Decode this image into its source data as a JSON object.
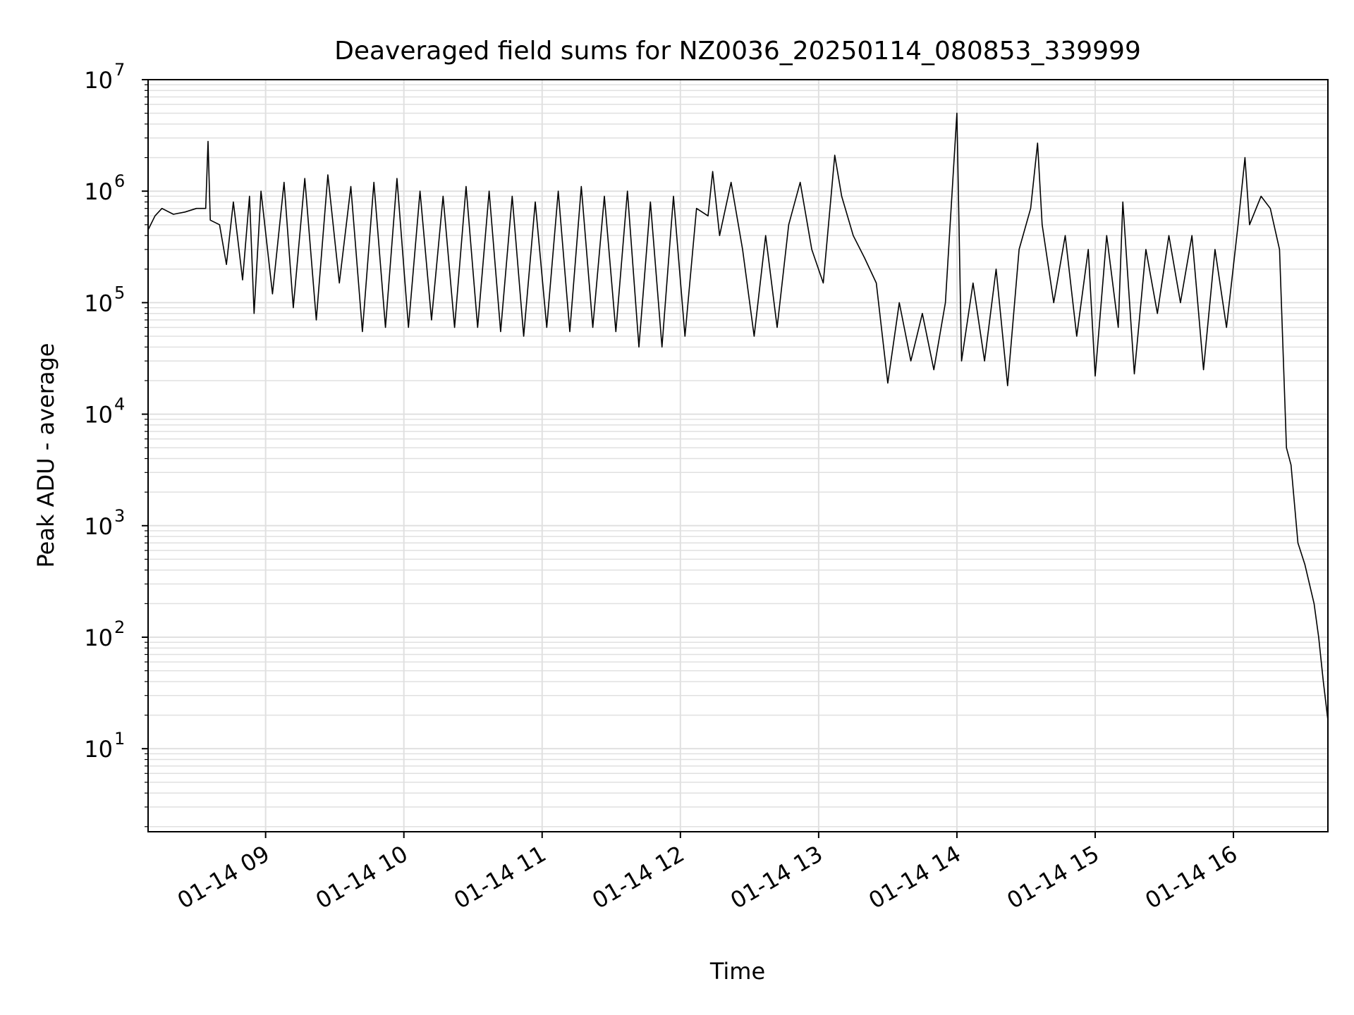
{
  "chart_data": {
    "type": "line",
    "title": "Deaveraged field sums for NZ0036_20250114_080853_339999",
    "xlabel": "Time",
    "ylabel": "Peak ADU - average",
    "yscale": "log",
    "grid": true,
    "grid_minor": true,
    "line_color": "#000000",
    "grid_color": "#e0e0e0",
    "xlim": [
      "2025-01-14 08:09",
      "2025-01-14 16:41"
    ],
    "ylim": [
      1.8,
      10000000
    ],
    "x_ticks": [
      {
        "value": "2025-01-14 09:00",
        "label": "01-14 09"
      },
      {
        "value": "2025-01-14 10:00",
        "label": "01-14 10"
      },
      {
        "value": "2025-01-14 11:00",
        "label": "01-14 11"
      },
      {
        "value": "2025-01-14 12:00",
        "label": "01-14 12"
      },
      {
        "value": "2025-01-14 13:00",
        "label": "01-14 13"
      },
      {
        "value": "2025-01-14 14:00",
        "label": "01-14 14"
      },
      {
        "value": "2025-01-14 15:00",
        "label": "01-14 15"
      },
      {
        "value": "2025-01-14 16:00",
        "label": "01-14 16"
      }
    ],
    "y_ticks": [
      {
        "value": 10,
        "base": "10",
        "exp": "1"
      },
      {
        "value": 100,
        "base": "10",
        "exp": "2"
      },
      {
        "value": 1000,
        "base": "10",
        "exp": "3"
      },
      {
        "value": 10000,
        "base": "10",
        "exp": "4"
      },
      {
        "value": 100000,
        "base": "10",
        "exp": "5"
      },
      {
        "value": 1000000,
        "base": "10",
        "exp": "6"
      },
      {
        "value": 10000000,
        "base": "10",
        "exp": "7"
      }
    ],
    "series": [
      {
        "points": [
          [
            "2025-01-14 08:09",
            450000
          ],
          [
            "2025-01-14 08:12",
            600000
          ],
          [
            "2025-01-14 08:15",
            700000
          ],
          [
            "2025-01-14 08:20",
            620000
          ],
          [
            "2025-01-14 08:25",
            650000
          ],
          [
            "2025-01-14 08:30",
            700000
          ],
          [
            "2025-01-14 08:34",
            700000
          ],
          [
            "2025-01-14 08:35",
            2800000
          ],
          [
            "2025-01-14 08:36",
            550000
          ],
          [
            "2025-01-14 08:40",
            500000
          ],
          [
            "2025-01-14 08:43",
            220000
          ],
          [
            "2025-01-14 08:46",
            800000
          ],
          [
            "2025-01-14 08:50",
            160000
          ],
          [
            "2025-01-14 08:53",
            900000
          ],
          [
            "2025-01-14 08:55",
            80000
          ],
          [
            "2025-01-14 08:58",
            1000000
          ],
          [
            "2025-01-14 09:03",
            120000
          ],
          [
            "2025-01-14 09:08",
            1200000
          ],
          [
            "2025-01-14 09:12",
            90000
          ],
          [
            "2025-01-14 09:17",
            1300000
          ],
          [
            "2025-01-14 09:22",
            70000
          ],
          [
            "2025-01-14 09:27",
            1400000
          ],
          [
            "2025-01-14 09:32",
            150000
          ],
          [
            "2025-01-14 09:37",
            1100000
          ],
          [
            "2025-01-14 09:42",
            55000
          ],
          [
            "2025-01-14 09:47",
            1200000
          ],
          [
            "2025-01-14 09:52",
            60000
          ],
          [
            "2025-01-14 09:57",
            1300000
          ],
          [
            "2025-01-14 10:02",
            60000
          ],
          [
            "2025-01-14 10:07",
            1000000
          ],
          [
            "2025-01-14 10:12",
            70000
          ],
          [
            "2025-01-14 10:17",
            900000
          ],
          [
            "2025-01-14 10:22",
            60000
          ],
          [
            "2025-01-14 10:27",
            1100000
          ],
          [
            "2025-01-14 10:32",
            60000
          ],
          [
            "2025-01-14 10:37",
            1000000
          ],
          [
            "2025-01-14 10:42",
            55000
          ],
          [
            "2025-01-14 10:47",
            900000
          ],
          [
            "2025-01-14 10:52",
            50000
          ],
          [
            "2025-01-14 10:57",
            800000
          ],
          [
            "2025-01-14 11:02",
            60000
          ],
          [
            "2025-01-14 11:07",
            1000000
          ],
          [
            "2025-01-14 11:12",
            55000
          ],
          [
            "2025-01-14 11:17",
            1100000
          ],
          [
            "2025-01-14 11:22",
            60000
          ],
          [
            "2025-01-14 11:27",
            900000
          ],
          [
            "2025-01-14 11:32",
            55000
          ],
          [
            "2025-01-14 11:37",
            1000000
          ],
          [
            "2025-01-14 11:42",
            40000
          ],
          [
            "2025-01-14 11:47",
            800000
          ],
          [
            "2025-01-14 11:52",
            40000
          ],
          [
            "2025-01-14 11:57",
            900000
          ],
          [
            "2025-01-14 12:02",
            50000
          ],
          [
            "2025-01-14 12:07",
            700000
          ],
          [
            "2025-01-14 12:12",
            600000
          ],
          [
            "2025-01-14 12:14",
            1500000
          ],
          [
            "2025-01-14 12:17",
            400000
          ],
          [
            "2025-01-14 12:22",
            1200000
          ],
          [
            "2025-01-14 12:27",
            300000
          ],
          [
            "2025-01-14 12:32",
            50000
          ],
          [
            "2025-01-14 12:37",
            400000
          ],
          [
            "2025-01-14 12:42",
            60000
          ],
          [
            "2025-01-14 12:47",
            500000
          ],
          [
            "2025-01-14 12:52",
            1200000
          ],
          [
            "2025-01-14 12:57",
            300000
          ],
          [
            "2025-01-14 13:02",
            150000
          ],
          [
            "2025-01-14 13:07",
            2100000
          ],
          [
            "2025-01-14 13:10",
            900000
          ],
          [
            "2025-01-14 13:15",
            400000
          ],
          [
            "2025-01-14 13:20",
            250000
          ],
          [
            "2025-01-14 13:25",
            150000
          ],
          [
            "2025-01-14 13:30",
            19000
          ],
          [
            "2025-01-14 13:35",
            100000
          ],
          [
            "2025-01-14 13:40",
            30000
          ],
          [
            "2025-01-14 13:45",
            80000
          ],
          [
            "2025-01-14 13:50",
            25000
          ],
          [
            "2025-01-14 13:55",
            100000
          ],
          [
            "2025-01-14 14:00",
            5000000
          ],
          [
            "2025-01-14 14:02",
            30000
          ],
          [
            "2025-01-14 14:07",
            150000
          ],
          [
            "2025-01-14 14:12",
            30000
          ],
          [
            "2025-01-14 14:17",
            200000
          ],
          [
            "2025-01-14 14:22",
            18000
          ],
          [
            "2025-01-14 14:27",
            300000
          ],
          [
            "2025-01-14 14:32",
            700000
          ],
          [
            "2025-01-14 14:35",
            2700000
          ],
          [
            "2025-01-14 14:37",
            500000
          ],
          [
            "2025-01-14 14:42",
            100000
          ],
          [
            "2025-01-14 14:47",
            400000
          ],
          [
            "2025-01-14 14:52",
            50000
          ],
          [
            "2025-01-14 14:57",
            300000
          ],
          [
            "2025-01-14 15:00",
            22000
          ],
          [
            "2025-01-14 15:05",
            400000
          ],
          [
            "2025-01-14 15:10",
            60000
          ],
          [
            "2025-01-14 15:12",
            800000
          ],
          [
            "2025-01-14 15:17",
            23000
          ],
          [
            "2025-01-14 15:22",
            300000
          ],
          [
            "2025-01-14 15:27",
            80000
          ],
          [
            "2025-01-14 15:32",
            400000
          ],
          [
            "2025-01-14 15:37",
            100000
          ],
          [
            "2025-01-14 15:42",
            400000
          ],
          [
            "2025-01-14 15:47",
            25000
          ],
          [
            "2025-01-14 15:52",
            300000
          ],
          [
            "2025-01-14 15:57",
            60000
          ],
          [
            "2025-01-14 16:02",
            500000
          ],
          [
            "2025-01-14 16:05",
            2000000
          ],
          [
            "2025-01-14 16:07",
            500000
          ],
          [
            "2025-01-14 16:12",
            900000
          ],
          [
            "2025-01-14 16:16",
            700000
          ],
          [
            "2025-01-14 16:20",
            300000
          ],
          [
            "2025-01-14 16:23",
            5000
          ],
          [
            "2025-01-14 16:25",
            3500
          ],
          [
            "2025-01-14 16:28",
            700
          ],
          [
            "2025-01-14 16:31",
            450
          ],
          [
            "2025-01-14 16:35",
            200
          ],
          [
            "2025-01-14 16:37",
            100
          ],
          [
            "2025-01-14 16:39",
            40
          ],
          [
            "2025-01-14 16:41",
            18
          ]
        ]
      }
    ]
  }
}
